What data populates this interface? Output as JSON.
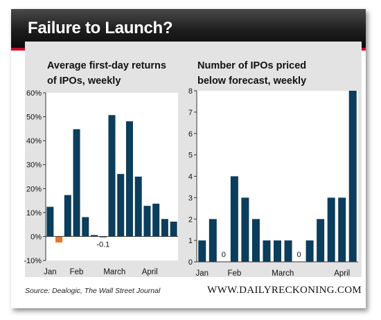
{
  "banner": {
    "title": "Failure to Launch?"
  },
  "source": "Source: Dealogic, The Wall Street Journal",
  "brand": "WWW.DAILYRECKONING.COM",
  "colors": {
    "bar": "#0b3d5c",
    "negative": "#e87722",
    "banner": "#1a1a1a",
    "accent": "#c8102e",
    "panel": "#e3e3e3"
  },
  "chart_data": [
    {
      "type": "bar",
      "title_lines": [
        "Average first-day returns",
        "of IPOs, weekly"
      ],
      "ylim": [
        -10,
        60
      ],
      "yticks": [
        -10,
        0,
        10,
        20,
        30,
        40,
        50,
        60
      ],
      "ytick_labels": [
        "-10%",
        "0%",
        "10%",
        "20%",
        "30%",
        "40%",
        "50%",
        "60%"
      ],
      "x_labels": [
        {
          "label": "Jan",
          "at": 0.5
        },
        {
          "label": "Feb",
          "at": 3.5
        },
        {
          "label": "March",
          "at": 7.8
        },
        {
          "label": "April",
          "at": 11.8
        }
      ],
      "values": [
        12.4,
        -2.5,
        17.3,
        44.8,
        8.1,
        0.6,
        -0.1,
        50.7,
        26.1,
        48.1,
        25.0,
        12.8,
        13.7,
        7.3,
        6.2
      ],
      "data_labels": [
        {
          "index": 6,
          "text": "-0.1"
        }
      ],
      "grid": false
    },
    {
      "type": "bar",
      "title_lines": [
        "Number of IPOs priced",
        "below forecast, weekly"
      ],
      "ylim": [
        0,
        8
      ],
      "yticks": [
        0,
        1,
        2,
        3,
        4,
        5,
        6,
        7,
        8
      ],
      "ytick_labels": [
        "0",
        "1",
        "2",
        "3",
        "4",
        "5",
        "6",
        "7",
        "8"
      ],
      "x_labels": [
        {
          "label": "Jan",
          "at": 0.5
        },
        {
          "label": "Feb",
          "at": 3.5
        },
        {
          "label": "March",
          "at": 8.0
        },
        {
          "label": "April",
          "at": 13.5
        }
      ],
      "values": [
        1,
        2,
        0,
        4,
        3,
        2,
        1,
        1,
        1,
        0,
        1,
        2,
        3,
        3,
        8
      ],
      "data_labels": [
        {
          "index": 2,
          "text": "0"
        },
        {
          "index": 9,
          "text": "0"
        }
      ],
      "grid": false
    }
  ]
}
